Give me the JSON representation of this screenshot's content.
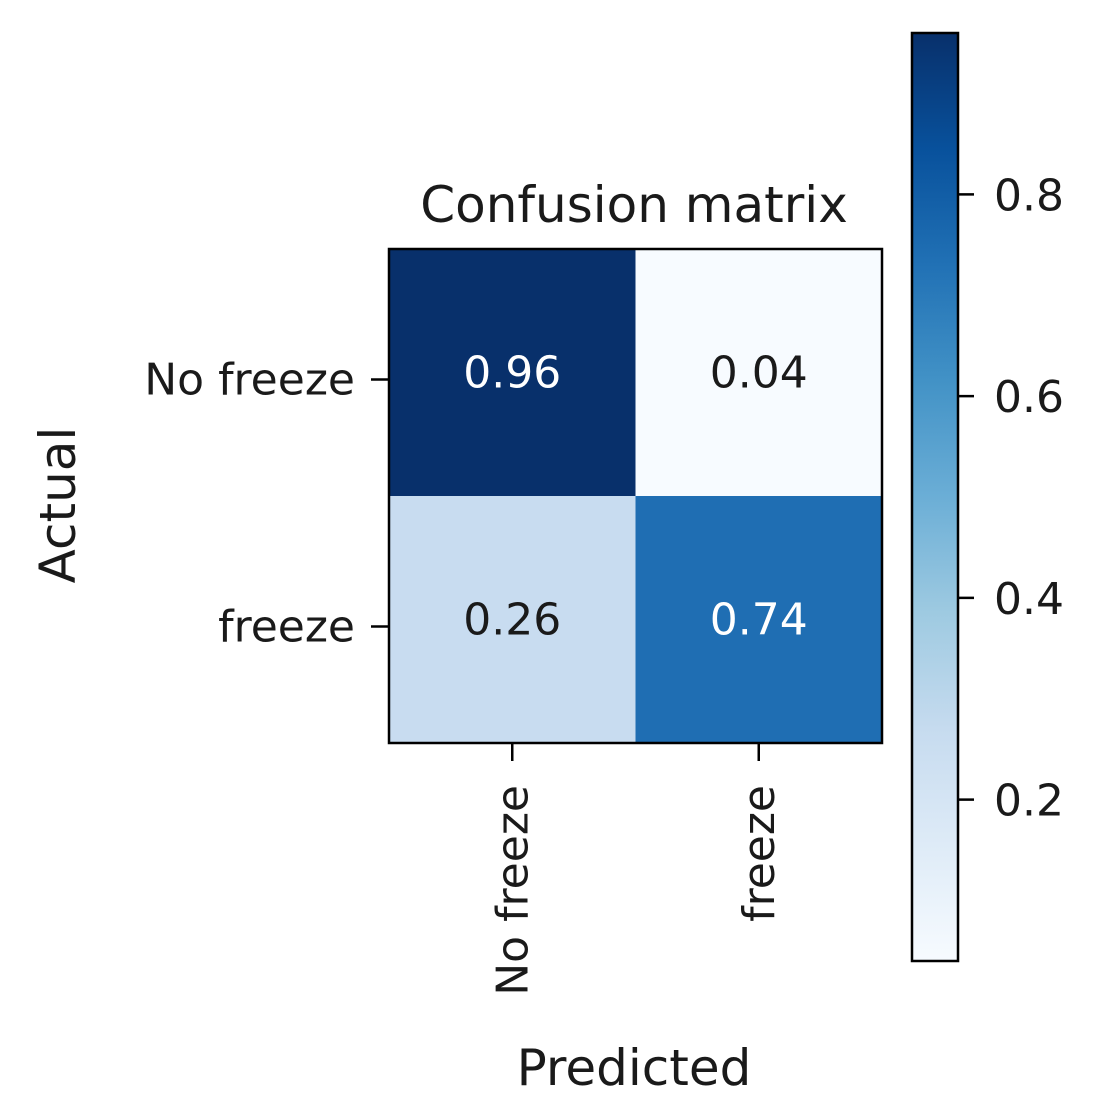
{
  "chart_data": {
    "type": "heatmap",
    "title": "Confusion matrix",
    "xlabel": "Predicted",
    "ylabel": "Actual",
    "row_labels": [
      "No freeze",
      "freeze"
    ],
    "col_labels": [
      "No freeze",
      "freeze"
    ],
    "values": [
      [
        0.96,
        0.04
      ],
      [
        0.26,
        0.74
      ]
    ],
    "value_labels": [
      [
        "0.96",
        "0.04"
      ],
      [
        "0.26",
        "0.74"
      ]
    ],
    "colormap": "Blues",
    "colorbar": {
      "range": [
        0.04,
        0.96
      ],
      "ticks": [
        0.2,
        0.4,
        0.6,
        0.8
      ],
      "tick_labels": [
        "0.2",
        "0.4",
        "0.6",
        "0.8"
      ]
    },
    "grid": false
  }
}
